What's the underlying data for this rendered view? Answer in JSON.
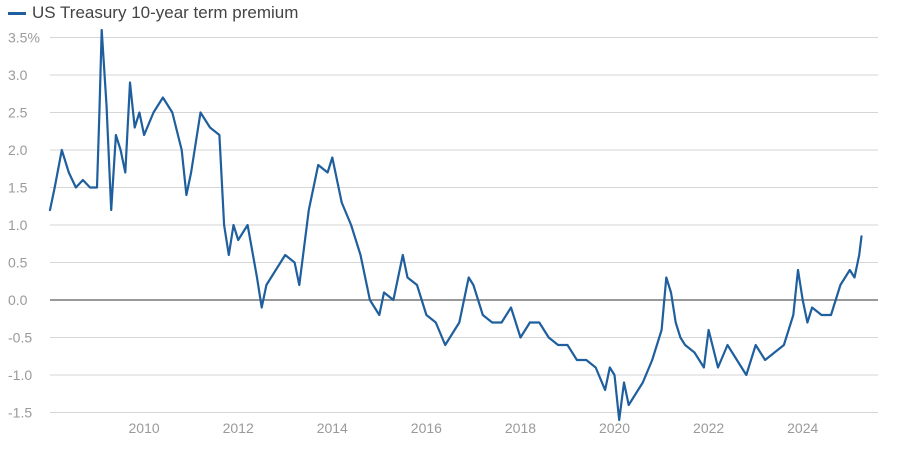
{
  "chart_data": {
    "type": "line",
    "title": "",
    "xlabel": "",
    "ylabel": "",
    "xlim": [
      2008.0,
      2025.6
    ],
    "ylim": [
      -1.6,
      3.6
    ],
    "y_ticks": [
      3.5,
      3.0,
      2.5,
      2.0,
      1.5,
      1.0,
      0.5,
      0.0,
      -0.5,
      -1.0,
      -1.5
    ],
    "y_tick_labels": [
      "3.5%",
      "3.0",
      "2.5",
      "2.0",
      "1.5",
      "1.0",
      "0.5",
      "0.0",
      "-0.5",
      "-1.0",
      "-1.5"
    ],
    "x_ticks": [
      2010,
      2012,
      2014,
      2016,
      2018,
      2020,
      2022,
      2024
    ],
    "x_tick_labels": [
      "2010",
      "2012",
      "2014",
      "2016",
      "2018",
      "2020",
      "2022",
      "2024"
    ],
    "grid": true,
    "legend_position": "top-left",
    "series": [
      {
        "name": "US Treasury 10-year term premium",
        "color": "#1f5f9e",
        "x": [
          2008.0,
          2008.1,
          2008.25,
          2008.4,
          2008.55,
          2008.7,
          2008.85,
          2009.0,
          2009.05,
          2009.1,
          2009.2,
          2009.3,
          2009.4,
          2009.5,
          2009.6,
          2009.7,
          2009.8,
          2009.9,
          2010.0,
          2010.2,
          2010.4,
          2010.6,
          2010.8,
          2010.9,
          2011.0,
          2011.2,
          2011.4,
          2011.6,
          2011.7,
          2011.8,
          2011.9,
          2012.0,
          2012.2,
          2012.4,
          2012.5,
          2012.6,
          2012.8,
          2013.0,
          2013.2,
          2013.3,
          2013.5,
          2013.7,
          2013.9,
          2014.0,
          2014.2,
          2014.4,
          2014.6,
          2014.8,
          2015.0,
          2015.1,
          2015.3,
          2015.5,
          2015.6,
          2015.8,
          2016.0,
          2016.2,
          2016.4,
          2016.5,
          2016.7,
          2016.9,
          2017.0,
          2017.2,
          2017.4,
          2017.6,
          2017.8,
          2018.0,
          2018.2,
          2018.4,
          2018.6,
          2018.8,
          2019.0,
          2019.2,
          2019.4,
          2019.6,
          2019.8,
          2019.9,
          2020.0,
          2020.1,
          2020.2,
          2020.3,
          2020.4,
          2020.6,
          2020.8,
          2021.0,
          2021.1,
          2021.2,
          2021.3,
          2021.4,
          2021.5,
          2021.7,
          2021.9,
          2022.0,
          2022.2,
          2022.4,
          2022.6,
          2022.8,
          2023.0,
          2023.2,
          2023.4,
          2023.6,
          2023.8,
          2023.9,
          2024.0,
          2024.1,
          2024.2,
          2024.4,
          2024.6,
          2024.8,
          2025.0,
          2025.1,
          2025.2,
          2025.25
        ],
        "values": [
          1.2,
          1.5,
          2.0,
          1.7,
          1.5,
          1.6,
          1.5,
          1.5,
          2.5,
          3.6,
          2.6,
          1.2,
          2.2,
          2.0,
          1.7,
          2.9,
          2.3,
          2.5,
          2.2,
          2.5,
          2.7,
          2.5,
          2.0,
          1.4,
          1.7,
          2.5,
          2.3,
          2.2,
          1.0,
          0.6,
          1.0,
          0.8,
          1.0,
          0.3,
          -0.1,
          0.2,
          0.4,
          0.6,
          0.5,
          0.2,
          1.2,
          1.8,
          1.7,
          1.9,
          1.3,
          1.0,
          0.6,
          0.0,
          -0.2,
          0.1,
          0.0,
          0.6,
          0.3,
          0.2,
          -0.2,
          -0.3,
          -0.6,
          -0.5,
          -0.3,
          0.3,
          0.2,
          -0.2,
          -0.3,
          -0.3,
          -0.1,
          -0.5,
          -0.3,
          -0.3,
          -0.5,
          -0.6,
          -0.6,
          -0.8,
          -0.8,
          -0.9,
          -1.2,
          -0.9,
          -1.0,
          -1.6,
          -1.1,
          -1.4,
          -1.3,
          -1.1,
          -0.8,
          -0.4,
          0.3,
          0.1,
          -0.3,
          -0.5,
          -0.6,
          -0.7,
          -0.9,
          -0.4,
          -0.9,
          -0.6,
          -0.8,
          -1.0,
          -0.6,
          -0.8,
          -0.7,
          -0.6,
          -0.2,
          0.4,
          0.0,
          -0.3,
          -0.1,
          -0.2,
          -0.2,
          0.2,
          0.4,
          0.3,
          0.6,
          0.85
        ]
      }
    ]
  }
}
